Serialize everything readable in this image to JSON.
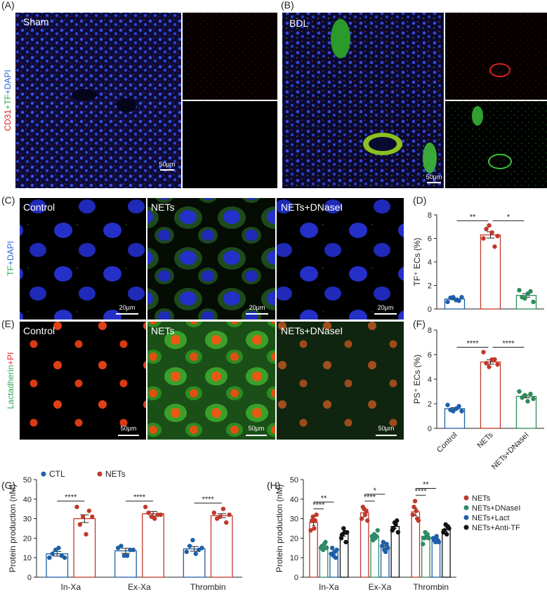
{
  "panel_labels": [
    "(A)",
    "(B)",
    "(C)",
    "(D)",
    "(E)",
    "(F)",
    "(G)",
    "(H)"
  ],
  "micrographs": {
    "sham_label": "Sham",
    "bdl_label": "BDL",
    "scale_a": "50μm",
    "scale_b": "50μm",
    "stain_a": [
      {
        "text": "CD31",
        "color": "#e0201e"
      },
      {
        "text": "+TF",
        "color": "#2fa84f"
      },
      {
        "text": "+DAPI",
        "color": "#2b62d9"
      }
    ],
    "stain_c": [
      {
        "text": "TF",
        "color": "#2fa84f"
      },
      {
        "text": "+DAPI",
        "color": "#2b62d9"
      }
    ],
    "stain_e": [
      {
        "text": "Lactadherin",
        "color": "#2fa84f"
      },
      {
        "text": "+PI",
        "color": "#e0201e"
      }
    ],
    "groups_c": [
      "Control",
      "NETs",
      "NETs+DNaseI"
    ],
    "groups_e": [
      "Control",
      "NETs",
      "NETs+DNaseI"
    ],
    "scales_c": [
      "20μm",
      "20μm",
      "20μm"
    ],
    "scales_e": [
      "50μm",
      "50μm",
      "50μm"
    ]
  },
  "chart_data": [
    {
      "type": "bar",
      "ylabel": "TF⁺ ECs (%)",
      "categories": [
        null,
        null,
        null
      ],
      "colors": [
        "#1f5fa8",
        "#c0392b",
        "#2e8b57"
      ],
      "values": [
        0.85,
        6.3,
        1.15
      ],
      "errors": [
        0.07,
        0.27,
        0.15
      ],
      "points": [
        [
          0.6,
          0.95,
          1.0,
          0.75,
          0.7,
          1.0
        ],
        [
          6.0,
          6.8,
          7.1,
          6.5,
          5.3,
          6.2
        ],
        [
          1.6,
          1.0,
          0.9,
          1.3,
          1.5,
          0.6
        ]
      ],
      "ylim": [
        0,
        8
      ],
      "yticks": [
        0,
        2,
        4,
        6,
        8
      ],
      "significance": [
        "**",
        "*"
      ]
    },
    {
      "type": "bar",
      "ylabel": "PS⁺ ECs (%)",
      "categories": [
        "Control",
        "NETs",
        "NETs+DNaseI"
      ],
      "colors": [
        "#1f5fa8",
        "#c0392b",
        "#2e8b57"
      ],
      "values": [
        1.6,
        5.4,
        2.6
      ],
      "errors": [
        0.08,
        0.17,
        0.12
      ],
      "points": [
        [
          1.9,
          1.5,
          1.4,
          1.6,
          1.8,
          1.4
        ],
        [
          6.2,
          5.3,
          5.0,
          5.6,
          5.6,
          5.2
        ],
        [
          3.0,
          2.5,
          2.7,
          2.2,
          2.8,
          2.4
        ]
      ],
      "ylim": [
        0,
        8
      ],
      "yticks": [
        0,
        2,
        4,
        6,
        8
      ],
      "significance": [
        "****",
        "****"
      ]
    },
    {
      "type": "grouped_bar",
      "ylabel": "Protein production (nM)",
      "categories": [
        "In-Xa",
        "Ex-Xa",
        "Thrombin"
      ],
      "legend": "top-left",
      "series": [
        {
          "name": "CTL",
          "color": "#1f5fa8",
          "values": [
            12,
            13.5,
            14.5
          ],
          "errors": [
            1.2,
            1.3,
            1.2
          ],
          "points": [
            [
              10,
              12,
              14,
              15,
              11,
              10
            ],
            [
              15,
              16,
              11,
              11,
              14,
              14
            ],
            [
              13,
              16,
              19,
              12,
              14,
              15
            ]
          ]
        },
        {
          "name": "NETs",
          "color": "#c0392b",
          "values": [
            30,
            32.5,
            31.5
          ],
          "errors": [
            2,
            1.2,
            1
          ],
          "points": [
            [
              36,
              27,
              31,
              22,
              34,
              31
            ],
            [
              36,
              33,
              31,
              30,
              32,
              32
            ],
            [
              33,
              30,
              31,
              35,
              28,
              32
            ]
          ]
        }
      ],
      "ylim": [
        0,
        50
      ],
      "yticks": [
        0,
        10,
        20,
        30,
        40,
        50
      ],
      "significance": [
        [
          "****"
        ],
        [
          "****"
        ],
        [
          "****"
        ]
      ]
    },
    {
      "type": "grouped_bar",
      "ylabel": "Protein production (nM)",
      "categories": [
        "In-Xa",
        "Ex-Xa",
        "Thrombin"
      ],
      "legend": "right",
      "series": [
        {
          "name": "NETs",
          "color": "#c0392b",
          "values": [
            28,
            33,
            33.5
          ],
          "errors": [
            1.5,
            2,
            2
          ],
          "points": [
            [
              24,
              29,
              31,
              25,
              29,
              32
            ],
            [
              30,
              36,
              35,
              32,
              34,
              29
            ],
            [
              32,
              36,
              39,
              34,
              30,
              29
            ]
          ]
        },
        {
          "name": "NETs+DNaseI",
          "color": "#2e8b6a",
          "values": [
            16,
            21,
            21
          ],
          "errors": [
            1,
            1,
            1.5
          ],
          "points": [
            [
              15,
              16,
              14,
              17,
              18,
              15
            ],
            [
              21,
              19,
              22,
              20,
              21,
              24
            ],
            [
              17,
              20,
              23,
              21,
              22,
              20
            ]
          ]
        },
        {
          "name": "NETs+Lact",
          "color": "#1f5fa8",
          "values": [
            12.5,
            16,
            19
          ],
          "errors": [
            1,
            1,
            1
          ],
          "points": [
            [
              12,
              15,
              11,
              13,
              10,
              14
            ],
            [
              16,
              18,
              14,
              13,
              17,
              15
            ],
            [
              20,
              19,
              18,
              21,
              19,
              18
            ]
          ]
        },
        {
          "name": "NETs+Anti-TF",
          "color": "#111111",
          "values": [
            22,
            26,
            24.5
          ],
          "errors": [
            1,
            1,
            1
          ],
          "points": [
            [
              20,
              22,
              25,
              23,
              18,
              23
            ],
            [
              24,
              25,
              28,
              27,
              29,
              23
            ],
            [
              23,
              24,
              27,
              22,
              26,
              25
            ]
          ]
        }
      ],
      "ylim": [
        0,
        50
      ],
      "yticks": [
        0,
        10,
        20,
        30,
        40,
        50
      ],
      "significance": [
        [
          "****",
          "**",
          null
        ],
        [
          "****",
          "*",
          null
        ],
        [
          "****",
          "**",
          null
        ]
      ]
    }
  ]
}
